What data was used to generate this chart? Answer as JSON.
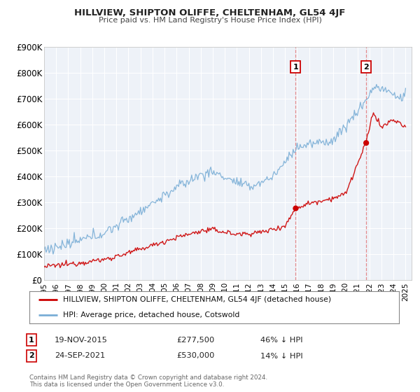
{
  "title": "HILLVIEW, SHIPTON OLIFFE, CHELTENHAM, GL54 4JF",
  "subtitle": "Price paid vs. HM Land Registry's House Price Index (HPI)",
  "ylim": [
    0,
    900000
  ],
  "yticks": [
    0,
    100000,
    200000,
    300000,
    400000,
    500000,
    600000,
    700000,
    800000,
    900000
  ],
  "ytick_labels": [
    "£0",
    "£100K",
    "£200K",
    "£300K",
    "£400K",
    "£500K",
    "£600K",
    "£700K",
    "£800K",
    "£900K"
  ],
  "xlim_start": 1995.0,
  "xlim_end": 2025.5,
  "xticks": [
    1995,
    1996,
    1997,
    1998,
    1999,
    2000,
    2001,
    2002,
    2003,
    2004,
    2005,
    2006,
    2007,
    2008,
    2009,
    2010,
    2011,
    2012,
    2013,
    2014,
    2015,
    2016,
    2017,
    2018,
    2019,
    2020,
    2021,
    2022,
    2023,
    2024,
    2025
  ],
  "transaction1_x": 2015.88,
  "transaction1_y": 277500,
  "transaction2_x": 2021.73,
  "transaction2_y": 530000,
  "vline1_x": 2015.88,
  "vline2_x": 2021.73,
  "red_line_color": "#cc0000",
  "blue_line_color": "#7aaed6",
  "background_color": "#ffffff",
  "plot_bg_color": "#eef2f8",
  "grid_color": "#ffffff",
  "legend_entry1": "HILLVIEW, SHIPTON OLIFFE, CHELTENHAM, GL54 4JF (detached house)",
  "legend_entry2": "HPI: Average price, detached house, Cotswold",
  "annotation1_date": "19-NOV-2015",
  "annotation1_price": "£277,500",
  "annotation1_hpi": "46% ↓ HPI",
  "annotation2_date": "24-SEP-2021",
  "annotation2_price": "£530,000",
  "annotation2_hpi": "14% ↓ HPI",
  "footer": "Contains HM Land Registry data © Crown copyright and database right 2024.\nThis data is licensed under the Open Government Licence v3.0."
}
